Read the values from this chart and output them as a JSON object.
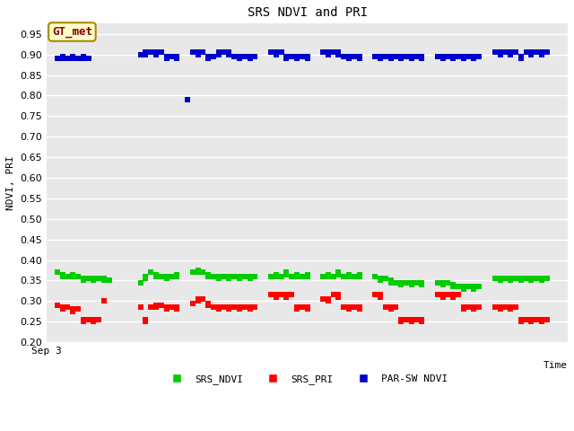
{
  "title": "SRS NDVI and PRI",
  "ylabel": "NDVI, PRI",
  "xlabel": "Time",
  "xlim": [
    0,
    100
  ],
  "ylim": [
    0.2,
    0.975
  ],
  "yticks": [
    0.2,
    0.25,
    0.3,
    0.35,
    0.4,
    0.45,
    0.5,
    0.55,
    0.6,
    0.65,
    0.7,
    0.75,
    0.8,
    0.85,
    0.9,
    0.95
  ],
  "bg_color": "#e8e8e8",
  "grid_color": "#ffffff",
  "annotation_text": "GT_met",
  "annotation_box_color": "#ffffcc",
  "annotation_text_color": "#8b0000",
  "ndvi_color": "#00cc00",
  "pri_color": "#ff0000",
  "parsw_color": "#0000cc",
  "marker": "s",
  "markersize": 4,
  "xstart_label": "Sep 3",
  "legend_labels": [
    "SRS_NDVI",
    "SRS_PRI",
    "PAR-SW NDVI"
  ],
  "ndvi_data_x": [
    2,
    3,
    3,
    4,
    5,
    5,
    6,
    7,
    7,
    8,
    9,
    9,
    10,
    11,
    11,
    12,
    18,
    19,
    19,
    20,
    21,
    21,
    22,
    23,
    23,
    24,
    25,
    25,
    28,
    29,
    29,
    30,
    31,
    31,
    32,
    33,
    33,
    34,
    35,
    35,
    36,
    37,
    37,
    38,
    39,
    39,
    40,
    43,
    44,
    44,
    45,
    46,
    46,
    47,
    48,
    48,
    49,
    50,
    50,
    53,
    54,
    54,
    55,
    56,
    56,
    57,
    58,
    58,
    59,
    60,
    60,
    63,
    64,
    64,
    65,
    66,
    66,
    67,
    68,
    68,
    69,
    70,
    70,
    71,
    72,
    72,
    75,
    76,
    76,
    77,
    78,
    78,
    79,
    80,
    80,
    81,
    82,
    82,
    83,
    86,
    87,
    87,
    88,
    89,
    89,
    90,
    91,
    91,
    92,
    93,
    93,
    94,
    95,
    95,
    96
  ],
  "ndvi_data_y": [
    0.37,
    0.365,
    0.36,
    0.36,
    0.365,
    0.36,
    0.36,
    0.355,
    0.35,
    0.355,
    0.355,
    0.35,
    0.355,
    0.355,
    0.35,
    0.35,
    0.345,
    0.36,
    0.355,
    0.37,
    0.365,
    0.36,
    0.36,
    0.36,
    0.355,
    0.36,
    0.365,
    0.36,
    0.37,
    0.375,
    0.37,
    0.37,
    0.365,
    0.36,
    0.36,
    0.36,
    0.355,
    0.36,
    0.36,
    0.355,
    0.36,
    0.36,
    0.355,
    0.36,
    0.36,
    0.355,
    0.36,
    0.36,
    0.365,
    0.36,
    0.36,
    0.37,
    0.365,
    0.36,
    0.365,
    0.36,
    0.36,
    0.365,
    0.36,
    0.36,
    0.365,
    0.36,
    0.36,
    0.37,
    0.365,
    0.36,
    0.365,
    0.36,
    0.36,
    0.365,
    0.36,
    0.36,
    0.355,
    0.35,
    0.355,
    0.35,
    0.345,
    0.345,
    0.345,
    0.34,
    0.345,
    0.345,
    0.34,
    0.345,
    0.345,
    0.34,
    0.345,
    0.345,
    0.34,
    0.345,
    0.34,
    0.335,
    0.335,
    0.335,
    0.33,
    0.335,
    0.335,
    0.33,
    0.335,
    0.355,
    0.355,
    0.35,
    0.355,
    0.355,
    0.35,
    0.355,
    0.355,
    0.35,
    0.355,
    0.355,
    0.35,
    0.355,
    0.355,
    0.35,
    0.355
  ],
  "pri_data_x": [
    2,
    3,
    3,
    4,
    5,
    5,
    6,
    7,
    7,
    8,
    9,
    9,
    10,
    11,
    18,
    19,
    19,
    20,
    21,
    21,
    22,
    23,
    23,
    24,
    25,
    25,
    28,
    29,
    29,
    30,
    31,
    31,
    32,
    33,
    33,
    34,
    35,
    35,
    36,
    37,
    37,
    38,
    39,
    39,
    40,
    43,
    44,
    44,
    45,
    46,
    46,
    47,
    48,
    48,
    49,
    50,
    50,
    53,
    54,
    54,
    55,
    56,
    56,
    57,
    58,
    58,
    59,
    60,
    60,
    63,
    64,
    64,
    65,
    66,
    66,
    67,
    68,
    68,
    69,
    70,
    70,
    71,
    72,
    72,
    75,
    76,
    76,
    77,
    78,
    78,
    79,
    80,
    80,
    81,
    82,
    82,
    83,
    86,
    87,
    87,
    88,
    89,
    89,
    90,
    91,
    91,
    92,
    93,
    93,
    94,
    95,
    95,
    96
  ],
  "pri_data_y": [
    0.29,
    0.285,
    0.28,
    0.285,
    0.28,
    0.275,
    0.28,
    0.255,
    0.25,
    0.255,
    0.255,
    0.25,
    0.255,
    0.3,
    0.285,
    0.255,
    0.25,
    0.285,
    0.29,
    0.285,
    0.29,
    0.285,
    0.28,
    0.285,
    0.285,
    0.28,
    0.295,
    0.305,
    0.3,
    0.305,
    0.295,
    0.29,
    0.285,
    0.285,
    0.28,
    0.285,
    0.285,
    0.28,
    0.285,
    0.285,
    0.28,
    0.285,
    0.285,
    0.28,
    0.285,
    0.315,
    0.315,
    0.31,
    0.315,
    0.315,
    0.31,
    0.315,
    0.285,
    0.28,
    0.285,
    0.285,
    0.28,
    0.305,
    0.305,
    0.3,
    0.315,
    0.315,
    0.31,
    0.285,
    0.285,
    0.28,
    0.285,
    0.285,
    0.28,
    0.315,
    0.315,
    0.31,
    0.285,
    0.285,
    0.28,
    0.285,
    0.255,
    0.25,
    0.255,
    0.255,
    0.25,
    0.255,
    0.255,
    0.25,
    0.315,
    0.315,
    0.31,
    0.315,
    0.315,
    0.31,
    0.315,
    0.285,
    0.28,
    0.285,
    0.285,
    0.28,
    0.285,
    0.285,
    0.285,
    0.28,
    0.285,
    0.285,
    0.28,
    0.285,
    0.255,
    0.25,
    0.255,
    0.255,
    0.25,
    0.255,
    0.255,
    0.25,
    0.255
  ],
  "parsw_data_x": [
    2,
    3,
    3,
    4,
    5,
    5,
    6,
    7,
    7,
    8,
    18,
    19,
    19,
    20,
    21,
    21,
    22,
    23,
    23,
    24,
    25,
    25,
    27,
    28,
    29,
    29,
    30,
    31,
    31,
    32,
    33,
    33,
    34,
    35,
    35,
    36,
    37,
    37,
    38,
    39,
    39,
    40,
    43,
    44,
    44,
    45,
    46,
    46,
    47,
    48,
    48,
    49,
    50,
    50,
    53,
    54,
    54,
    55,
    56,
    56,
    57,
    58,
    58,
    59,
    60,
    60,
    63,
    64,
    64,
    65,
    66,
    66,
    67,
    68,
    68,
    69,
    70,
    70,
    71,
    72,
    72,
    75,
    76,
    76,
    77,
    78,
    78,
    79,
    80,
    80,
    81,
    82,
    82,
    83,
    86,
    87,
    87,
    88,
    89,
    89,
    90,
    91,
    91,
    92,
    93,
    93,
    94,
    95,
    95,
    96
  ],
  "parsw_data_y": [
    0.89,
    0.895,
    0.89,
    0.89,
    0.895,
    0.89,
    0.89,
    0.895,
    0.89,
    0.89,
    0.9,
    0.905,
    0.9,
    0.905,
    0.905,
    0.9,
    0.905,
    0.895,
    0.89,
    0.895,
    0.895,
    0.89,
    0.79,
    0.905,
    0.905,
    0.9,
    0.905,
    0.895,
    0.89,
    0.895,
    0.905,
    0.9,
    0.905,
    0.905,
    0.9,
    0.895,
    0.895,
    0.89,
    0.895,
    0.895,
    0.89,
    0.895,
    0.905,
    0.905,
    0.9,
    0.905,
    0.895,
    0.89,
    0.895,
    0.895,
    0.89,
    0.895,
    0.895,
    0.89,
    0.905,
    0.905,
    0.9,
    0.905,
    0.905,
    0.9,
    0.895,
    0.895,
    0.89,
    0.895,
    0.895,
    0.89,
    0.895,
    0.895,
    0.89,
    0.895,
    0.895,
    0.89,
    0.895,
    0.895,
    0.89,
    0.895,
    0.895,
    0.89,
    0.895,
    0.895,
    0.89,
    0.895,
    0.895,
    0.89,
    0.895,
    0.895,
    0.89,
    0.895,
    0.895,
    0.89,
    0.895,
    0.895,
    0.89,
    0.895,
    0.905,
    0.905,
    0.9,
    0.905,
    0.905,
    0.9,
    0.905,
    0.895,
    0.89,
    0.905,
    0.905,
    0.9,
    0.905,
    0.905,
    0.9,
    0.905
  ]
}
